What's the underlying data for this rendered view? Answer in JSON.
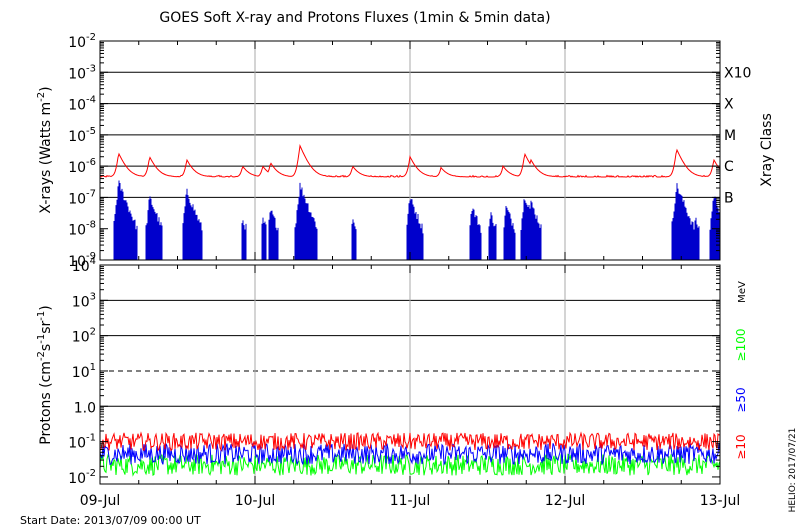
{
  "chart_data": [
    {
      "type": "line",
      "title": "GOES Soft X-ray and Protons Fluxes   (1min & 5min data)",
      "ylabel": "X-rays (Watts m",
      "ylabel_sup": "-2",
      "ylabel_close": ")",
      "yscale": "log",
      "ylim_exp": [
        -9,
        -2
      ],
      "ytick_exps": [
        -9,
        -8,
        -7,
        -6,
        -5,
        -4,
        -3,
        -2
      ],
      "ytick_base": "10",
      "grid_exps": [
        -7,
        -6,
        -5,
        -4,
        -3
      ],
      "xlim_days": [
        0,
        4
      ],
      "right_axis_label": "Xray Class",
      "class_labels": [
        {
          "text": "B",
          "exp": -7
        },
        {
          "text": "C",
          "exp": -6
        },
        {
          "text": "M",
          "exp": -5
        },
        {
          "text": "X",
          "exp": -4
        },
        {
          "text": "X10",
          "exp": -3
        }
      ],
      "series": [
        {
          "color": "#ff0000",
          "baseline": 4.5e-07,
          "peaks": [
            {
              "t": 0.12,
              "v": 2.6e-06
            },
            {
              "t": 0.32,
              "v": 2e-06
            },
            {
              "t": 0.56,
              "v": 1.6e-06
            },
            {
              "t": 0.92,
              "v": 1e-06
            },
            {
              "t": 1.05,
              "v": 1e-06
            },
            {
              "t": 1.1,
              "v": 1.3e-06
            },
            {
              "t": 1.29,
              "v": 4.5e-06
            },
            {
              "t": 1.63,
              "v": 1e-06
            },
            {
              "t": 2.0,
              "v": 2e-06
            },
            {
              "t": 2.2,
              "v": 9e-07
            },
            {
              "t": 2.6,
              "v": 1e-06
            },
            {
              "t": 2.74,
              "v": 2.5e-06
            },
            {
              "t": 2.78,
              "v": 1.6e-06
            },
            {
              "t": 3.72,
              "v": 3.5e-06
            },
            {
              "t": 3.96,
              "v": 1.6e-06
            }
          ]
        },
        {
          "color": "#0000cc",
          "baseline": 1e-09,
          "peaks": [
            {
              "t": 0.12,
              "v": 3e-07
            },
            {
              "t": 0.32,
              "v": 1e-07
            },
            {
              "t": 0.56,
              "v": 1.6e-07
            },
            {
              "t": 0.92,
              "v": 2e-08
            },
            {
              "t": 1.05,
              "v": 2e-08
            },
            {
              "t": 1.1,
              "v": 4e-08
            },
            {
              "t": 1.29,
              "v": 2.5e-07
            },
            {
              "t": 1.63,
              "v": 2e-08
            },
            {
              "t": 2.0,
              "v": 1e-07
            },
            {
              "t": 2.4,
              "v": 5e-08
            },
            {
              "t": 2.52,
              "v": 3e-08
            },
            {
              "t": 2.62,
              "v": 5e-08
            },
            {
              "t": 2.74,
              "v": 1.2e-07
            },
            {
              "t": 2.78,
              "v": 7e-08
            },
            {
              "t": 3.72,
              "v": 2.5e-07
            },
            {
              "t": 3.84,
              "v": 2e-08
            },
            {
              "t": 3.96,
              "v": 1.2e-07
            }
          ]
        }
      ]
    },
    {
      "type": "line",
      "ylabel": "Protons (cm",
      "ylabel_sup1": "-2",
      "ylabel_mid1": "s",
      "ylabel_sup2": "-1",
      "ylabel_mid2": "sr",
      "ylabel_sup3": "-1",
      "ylabel_close": ")",
      "yscale": "log",
      "ylim_exp": [
        -2.2,
        4
      ],
      "ytick_exps": [
        -2,
        -1,
        0,
        1,
        2,
        3,
        4
      ],
      "ytick_labels": [
        {
          "base": "10",
          "sup": "-2"
        },
        {
          "base": "10",
          "sup": "-1"
        },
        {
          "base": "1.0",
          "sup": ""
        },
        {
          "base": "10",
          "sup": "1"
        },
        {
          "base": "10",
          "sup": "2"
        },
        {
          "base": "10",
          "sup": "3"
        },
        {
          "base": "10",
          "sup": "4"
        }
      ],
      "grid_exps": [
        0,
        2,
        3
      ],
      "dashed_exps": [
        1
      ],
      "x_tick_labels": [
        "09-Jul",
        "10-Jul",
        "11-Jul",
        "12-Jul",
        "13-Jul"
      ],
      "xlim_days": [
        0,
        4
      ],
      "energy_unit": "MeV",
      "energy_labels": [
        {
          "text": "≥100",
          "color": "#00ff00"
        },
        {
          "text": "≥50",
          "color": "#0000ff"
        },
        {
          "text": "≥10",
          "color": "#ff0000"
        }
      ],
      "series": [
        {
          "name": "≥10 MeV",
          "color": "#ff0000",
          "mean": 0.1,
          "spread": 0.25
        },
        {
          "name": "≥50 MeV",
          "color": "#0000ff",
          "mean": 0.045,
          "spread": 0.3
        },
        {
          "name": "≥100 MeV",
          "color": "#00ff00",
          "mean": 0.022,
          "spread": 0.3
        }
      ]
    }
  ],
  "footer": {
    "start_date": "Start Date: 2013/07/09 00:00 UT",
    "credit": "HELIO: 2017/07/21"
  }
}
